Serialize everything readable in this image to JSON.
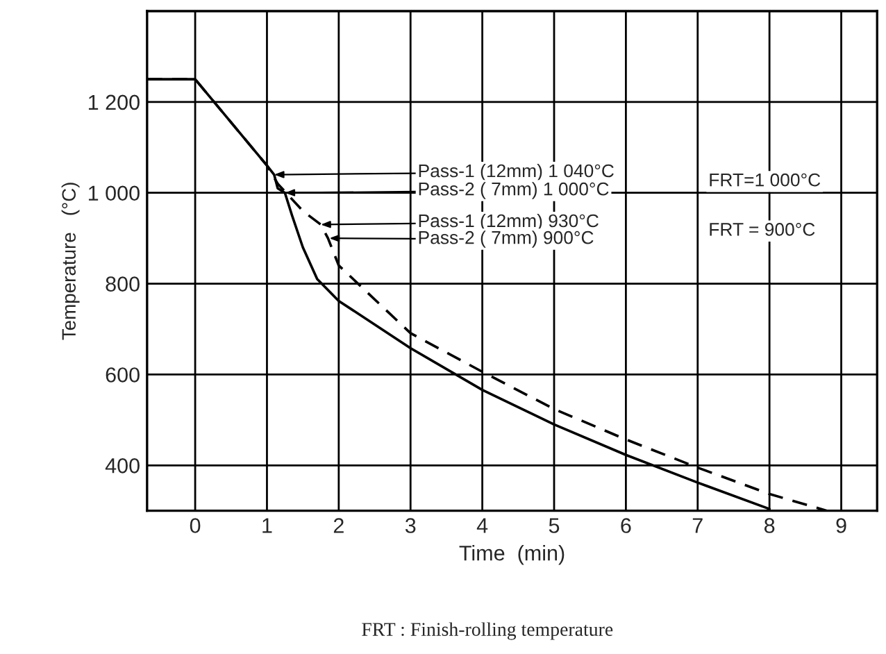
{
  "chart_data": {
    "type": "line",
    "xlabel": "Time  (min)",
    "ylabel": "Temperature   (°C)",
    "xlim": [
      -0.67,
      9.5
    ],
    "ylim": [
      300,
      1400
    ],
    "xticks": [
      0,
      1,
      2,
      3,
      4,
      5,
      6,
      7,
      8,
      9
    ],
    "yticks": [
      400,
      600,
      800,
      {
        "value": 1000,
        "label": "1 000"
      },
      {
        "value": 1200,
        "label": "1 200"
      }
    ],
    "grid": true,
    "legend": false,
    "series": [
      {
        "color": "#000000",
        "line_style": "solid",
        "x": [
          -0.67,
          0,
          1.0,
          1.1,
          1.15,
          1.25,
          1.35,
          1.5,
          1.7,
          2.0,
          3,
          4,
          5,
          6,
          7,
          8
        ],
        "values": [
          1250,
          1250,
          1060,
          1040,
          1010,
          1000,
          950,
          880,
          810,
          762,
          658,
          566,
          490,
          423,
          362,
          304
        ]
      },
      {
        "color": "#000000",
        "line_style": "dashed",
        "x": [
          -0.67,
          0,
          1.0,
          1.15,
          1.5,
          1.75,
          1.85,
          2.0,
          3,
          4,
          5,
          6,
          7,
          8,
          8.8
        ],
        "values": [
          1250,
          1250,
          1060,
          1020,
          960,
          930,
          900,
          840,
          691,
          606,
          524,
          457,
          395,
          337,
          300
        ]
      }
    ],
    "annotations": [
      {
        "text": "Pass-1 (12mm) 1 040°C",
        "x": 1.1,
        "y": 1040
      },
      {
        "text": "Pass-2 ( 7mm) 1 000°C",
        "x": 1.25,
        "y": 1000
      },
      "FRT=1 000°C",
      {
        "text": "Pass-1 (12mm) 930°C",
        "x": 1.75,
        "y": 930
      },
      "Pass-2 ( 7mm) 900°C",
      "FRT = 900°C",
      "FRT : Finish-rolling temperature"
    ]
  }
}
